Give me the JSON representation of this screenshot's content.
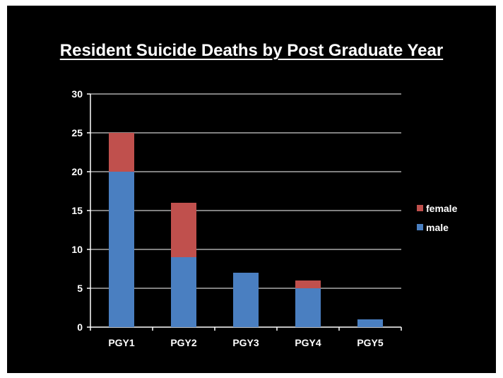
{
  "chart_data": {
    "type": "bar",
    "stacked": true,
    "title": "Resident Suicide Deaths by Post Graduate Year",
    "categories": [
      "PGY1",
      "PGY2",
      "PGY3",
      "PGY4",
      "PGY5"
    ],
    "series": [
      {
        "name": "male",
        "values": [
          20,
          9,
          7,
          5,
          1
        ],
        "color": "#4a7fc1"
      },
      {
        "name": "female",
        "values": [
          5,
          7,
          0,
          1,
          0
        ],
        "color": "#c0504d"
      }
    ],
    "y_ticks": [
      0,
      5,
      10,
      15,
      20,
      25,
      30
    ],
    "ylim": [
      0,
      30
    ],
    "grid": true,
    "legend": {
      "position": "right",
      "order": [
        "female",
        "male"
      ]
    },
    "colors": {
      "background": "#000000",
      "text": "#ffffff",
      "grid": "#ffffff"
    }
  }
}
